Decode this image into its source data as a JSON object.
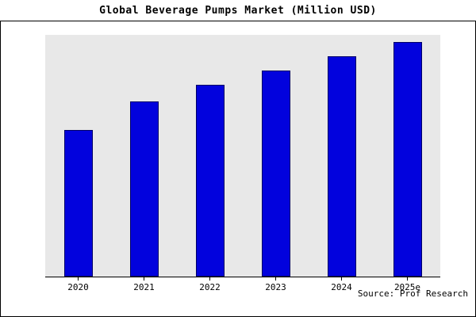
{
  "header": {
    "title": "Global Beverage Pumps Market (Million USD)"
  },
  "footer": {
    "source": "Source: Prof Research"
  },
  "chart_data": {
    "type": "bar",
    "title": "Global Beverage Pumps Market (Million USD)",
    "categories": [
      "2020",
      "2021",
      "2022",
      "2023",
      "2024",
      "2025e"
    ],
    "values": [
      62,
      74,
      81,
      87,
      93,
      99
    ],
    "xlabel": "",
    "ylabel": "",
    "ylim": [
      0,
      102
    ],
    "grid": false,
    "legend": false,
    "bar_color": "#0202dd",
    "bar_edge_color": "#000066",
    "plot_background": "#e8e8e8",
    "source": "Source: Prof Research"
  }
}
